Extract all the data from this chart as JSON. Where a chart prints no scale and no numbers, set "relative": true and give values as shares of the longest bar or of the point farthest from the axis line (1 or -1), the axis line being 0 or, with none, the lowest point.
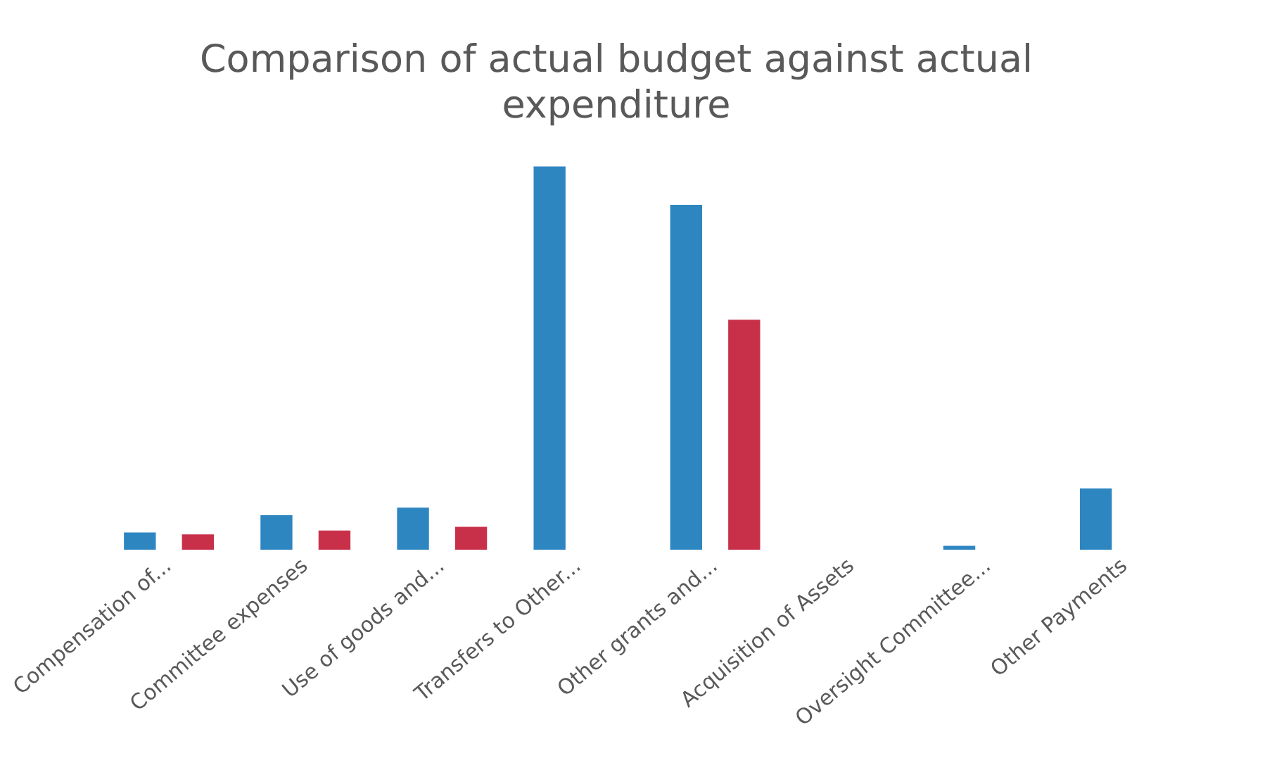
{
  "chart_data": {
    "type": "bar",
    "title": "Comparison of actual budget against actual expenditure",
    "relative": true,
    "categories": [
      "Compensation of...",
      "Committee expenses",
      "Use of goods and...",
      "Transfers to Other...",
      "Other grants and...",
      "Acquisition of Assets",
      "Oversight Committee...",
      "Other Payments"
    ],
    "series": [
      {
        "color": "#2e86c1",
        "values": [
          0.045,
          0.09,
          0.11,
          1,
          0.9,
          0,
          0.01,
          0.16
        ]
      },
      {
        "color": "#c8304a",
        "values": [
          0.04,
          0.05,
          0.06,
          0,
          0.6,
          0,
          0,
          0
        ]
      }
    ],
    "grid": false,
    "legend": false
  }
}
